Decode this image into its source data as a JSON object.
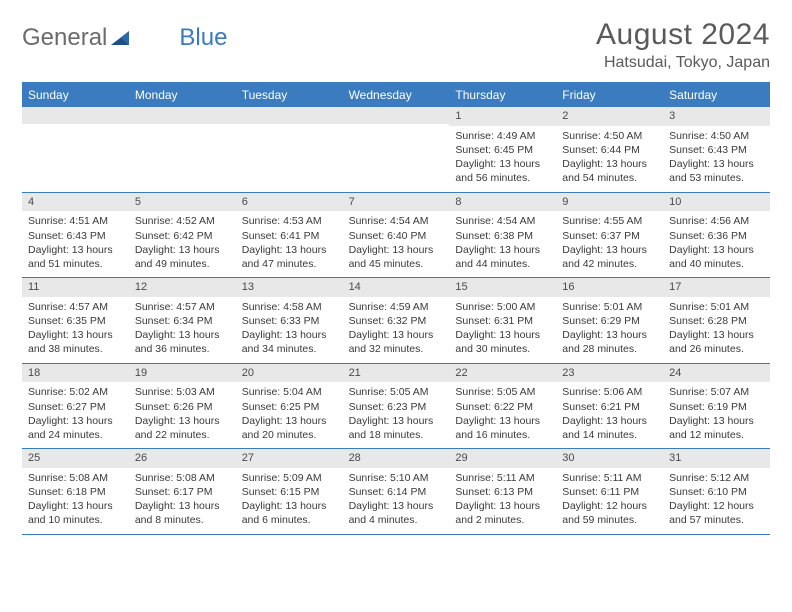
{
  "brand": {
    "part1": "General",
    "part2": "Blue"
  },
  "title": "August 2024",
  "location": "Hatsudai, Tokyo, Japan",
  "dayNames": [
    "Sunday",
    "Monday",
    "Tuesday",
    "Wednesday",
    "Thursday",
    "Friday",
    "Saturday"
  ],
  "colors": {
    "accent": "#3b7bbf",
    "headerText": "#ffffff",
    "grayBand": "#e8e8e8",
    "bodyText": "#3a3a3a",
    "titleText": "#5a5a5a"
  },
  "weeks": [
    [
      {
        "n": "",
        "sunrise": "",
        "sunset": "",
        "daylight": ""
      },
      {
        "n": "",
        "sunrise": "",
        "sunset": "",
        "daylight": ""
      },
      {
        "n": "",
        "sunrise": "",
        "sunset": "",
        "daylight": ""
      },
      {
        "n": "",
        "sunrise": "",
        "sunset": "",
        "daylight": ""
      },
      {
        "n": "1",
        "sunrise": "Sunrise: 4:49 AM",
        "sunset": "Sunset: 6:45 PM",
        "daylight": "Daylight: 13 hours and 56 minutes."
      },
      {
        "n": "2",
        "sunrise": "Sunrise: 4:50 AM",
        "sunset": "Sunset: 6:44 PM",
        "daylight": "Daylight: 13 hours and 54 minutes."
      },
      {
        "n": "3",
        "sunrise": "Sunrise: 4:50 AM",
        "sunset": "Sunset: 6:43 PM",
        "daylight": "Daylight: 13 hours and 53 minutes."
      }
    ],
    [
      {
        "n": "4",
        "sunrise": "Sunrise: 4:51 AM",
        "sunset": "Sunset: 6:43 PM",
        "daylight": "Daylight: 13 hours and 51 minutes."
      },
      {
        "n": "5",
        "sunrise": "Sunrise: 4:52 AM",
        "sunset": "Sunset: 6:42 PM",
        "daylight": "Daylight: 13 hours and 49 minutes."
      },
      {
        "n": "6",
        "sunrise": "Sunrise: 4:53 AM",
        "sunset": "Sunset: 6:41 PM",
        "daylight": "Daylight: 13 hours and 47 minutes."
      },
      {
        "n": "7",
        "sunrise": "Sunrise: 4:54 AM",
        "sunset": "Sunset: 6:40 PM",
        "daylight": "Daylight: 13 hours and 45 minutes."
      },
      {
        "n": "8",
        "sunrise": "Sunrise: 4:54 AM",
        "sunset": "Sunset: 6:38 PM",
        "daylight": "Daylight: 13 hours and 44 minutes."
      },
      {
        "n": "9",
        "sunrise": "Sunrise: 4:55 AM",
        "sunset": "Sunset: 6:37 PM",
        "daylight": "Daylight: 13 hours and 42 minutes."
      },
      {
        "n": "10",
        "sunrise": "Sunrise: 4:56 AM",
        "sunset": "Sunset: 6:36 PM",
        "daylight": "Daylight: 13 hours and 40 minutes."
      }
    ],
    [
      {
        "n": "11",
        "sunrise": "Sunrise: 4:57 AM",
        "sunset": "Sunset: 6:35 PM",
        "daylight": "Daylight: 13 hours and 38 minutes."
      },
      {
        "n": "12",
        "sunrise": "Sunrise: 4:57 AM",
        "sunset": "Sunset: 6:34 PM",
        "daylight": "Daylight: 13 hours and 36 minutes."
      },
      {
        "n": "13",
        "sunrise": "Sunrise: 4:58 AM",
        "sunset": "Sunset: 6:33 PM",
        "daylight": "Daylight: 13 hours and 34 minutes."
      },
      {
        "n": "14",
        "sunrise": "Sunrise: 4:59 AM",
        "sunset": "Sunset: 6:32 PM",
        "daylight": "Daylight: 13 hours and 32 minutes."
      },
      {
        "n": "15",
        "sunrise": "Sunrise: 5:00 AM",
        "sunset": "Sunset: 6:31 PM",
        "daylight": "Daylight: 13 hours and 30 minutes."
      },
      {
        "n": "16",
        "sunrise": "Sunrise: 5:01 AM",
        "sunset": "Sunset: 6:29 PM",
        "daylight": "Daylight: 13 hours and 28 minutes."
      },
      {
        "n": "17",
        "sunrise": "Sunrise: 5:01 AM",
        "sunset": "Sunset: 6:28 PM",
        "daylight": "Daylight: 13 hours and 26 minutes."
      }
    ],
    [
      {
        "n": "18",
        "sunrise": "Sunrise: 5:02 AM",
        "sunset": "Sunset: 6:27 PM",
        "daylight": "Daylight: 13 hours and 24 minutes."
      },
      {
        "n": "19",
        "sunrise": "Sunrise: 5:03 AM",
        "sunset": "Sunset: 6:26 PM",
        "daylight": "Daylight: 13 hours and 22 minutes."
      },
      {
        "n": "20",
        "sunrise": "Sunrise: 5:04 AM",
        "sunset": "Sunset: 6:25 PM",
        "daylight": "Daylight: 13 hours and 20 minutes."
      },
      {
        "n": "21",
        "sunrise": "Sunrise: 5:05 AM",
        "sunset": "Sunset: 6:23 PM",
        "daylight": "Daylight: 13 hours and 18 minutes."
      },
      {
        "n": "22",
        "sunrise": "Sunrise: 5:05 AM",
        "sunset": "Sunset: 6:22 PM",
        "daylight": "Daylight: 13 hours and 16 minutes."
      },
      {
        "n": "23",
        "sunrise": "Sunrise: 5:06 AM",
        "sunset": "Sunset: 6:21 PM",
        "daylight": "Daylight: 13 hours and 14 minutes."
      },
      {
        "n": "24",
        "sunrise": "Sunrise: 5:07 AM",
        "sunset": "Sunset: 6:19 PM",
        "daylight": "Daylight: 13 hours and 12 minutes."
      }
    ],
    [
      {
        "n": "25",
        "sunrise": "Sunrise: 5:08 AM",
        "sunset": "Sunset: 6:18 PM",
        "daylight": "Daylight: 13 hours and 10 minutes."
      },
      {
        "n": "26",
        "sunrise": "Sunrise: 5:08 AM",
        "sunset": "Sunset: 6:17 PM",
        "daylight": "Daylight: 13 hours and 8 minutes."
      },
      {
        "n": "27",
        "sunrise": "Sunrise: 5:09 AM",
        "sunset": "Sunset: 6:15 PM",
        "daylight": "Daylight: 13 hours and 6 minutes."
      },
      {
        "n": "28",
        "sunrise": "Sunrise: 5:10 AM",
        "sunset": "Sunset: 6:14 PM",
        "daylight": "Daylight: 13 hours and 4 minutes."
      },
      {
        "n": "29",
        "sunrise": "Sunrise: 5:11 AM",
        "sunset": "Sunset: 6:13 PM",
        "daylight": "Daylight: 13 hours and 2 minutes."
      },
      {
        "n": "30",
        "sunrise": "Sunrise: 5:11 AM",
        "sunset": "Sunset: 6:11 PM",
        "daylight": "Daylight: 12 hours and 59 minutes."
      },
      {
        "n": "31",
        "sunrise": "Sunrise: 5:12 AM",
        "sunset": "Sunset: 6:10 PM",
        "daylight": "Daylight: 12 hours and 57 minutes."
      }
    ]
  ]
}
